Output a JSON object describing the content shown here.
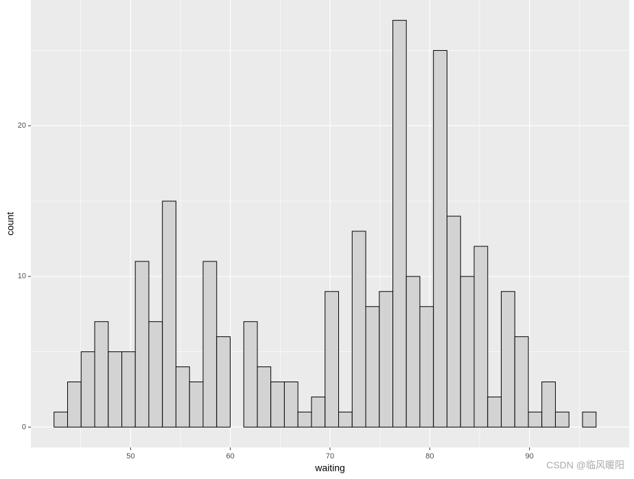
{
  "chart_data": {
    "type": "histogram",
    "x_label": "waiting",
    "y_label": "count",
    "annotation": "CSDN @临风暖阳",
    "bins": [
      42.32,
      43.68,
      45.04,
      46.4,
      47.76,
      49.12,
      50.47,
      51.83,
      53.19,
      54.55,
      55.91,
      57.27,
      58.63,
      59.99,
      61.35,
      62.71,
      64.06,
      65.42,
      66.78,
      68.14,
      69.5,
      70.86,
      72.22,
      73.58,
      74.94,
      76.3,
      77.65,
      79.01,
      80.37,
      81.73,
      83.09,
      84.45,
      85.81,
      87.17,
      88.53,
      89.89,
      91.24,
      92.6,
      93.96,
      95.32,
      96.68
    ],
    "values": [
      1,
      3,
      5,
      7,
      5,
      5,
      11,
      7,
      15,
      4,
      3,
      11,
      6,
      0,
      7,
      4,
      3,
      3,
      1,
      2,
      9,
      1,
      13,
      8,
      9,
      27,
      10,
      8,
      25,
      14,
      10,
      12,
      2,
      9,
      6,
      1,
      3,
      1,
      0,
      1
    ],
    "color": "#d3d3d3",
    "edge_color": "#000000",
    "xlim": [
      40,
      100
    ],
    "xticks": [
      50,
      60,
      70,
      80,
      90
    ],
    "xminor": [
      45,
      55,
      65,
      75,
      85,
      95
    ],
    "ylim": [
      -1.35,
      28.35
    ],
    "yticks": [
      0,
      10,
      20
    ],
    "yminor": [
      5,
      15,
      25
    ],
    "grid": true
  }
}
